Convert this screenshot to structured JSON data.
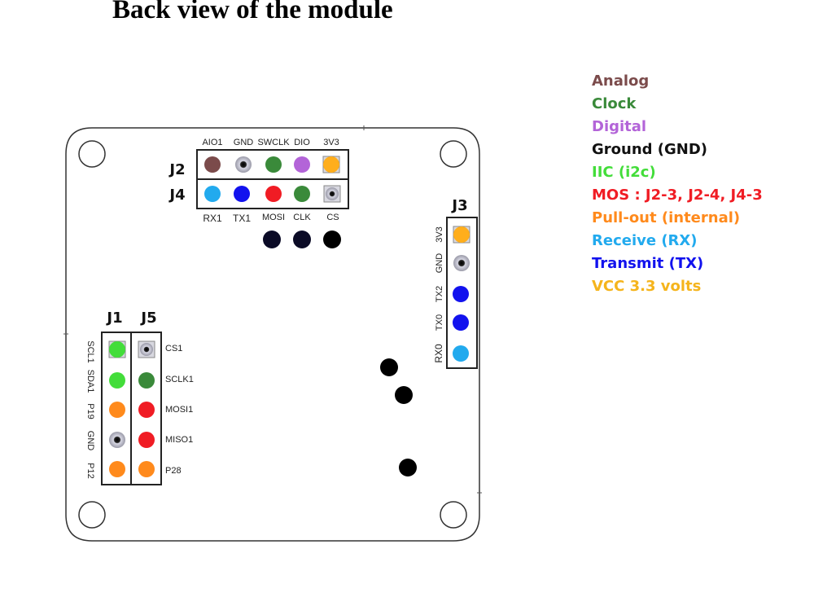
{
  "title": "Back view of the module",
  "colors": {
    "analog": "#7b4b4b",
    "clock": "#3a8a3a",
    "digital": "#b364d8",
    "ground": "#1a1a1a",
    "iic": "#43dd3a",
    "mos": "#f01c24",
    "pullout": "#ff8a1c",
    "rx": "#22aaee",
    "tx": "#1212ee",
    "vcc": "#ffae1c",
    "via": "#0b0b26"
  },
  "legend": [
    {
      "label": "Analog",
      "color": "#7b4b4b"
    },
    {
      "label": "Clock",
      "color": "#3a8a3a"
    },
    {
      "label": "Digital",
      "color": "#b364d8"
    },
    {
      "label": "Ground (GND)",
      "color": "#111111"
    },
    {
      "label": "IIC (i2c)",
      "color": "#43dd3a"
    },
    {
      "label": "MOS : J2-3, J2-4, J4-3",
      "color": "#f01c24"
    },
    {
      "label": "Pull-out (internal)",
      "color": "#ff8a1c"
    },
    {
      "label": "Receive (RX)",
      "color": "#22aaee"
    },
    {
      "label": "Transmit (TX)",
      "color": "#1212ee"
    },
    {
      "label": "VCC 3.3 volts",
      "color": "#f5b41c"
    }
  ],
  "headers": {
    "j2": {
      "name": "J2",
      "pins": [
        "AIO1",
        "GND",
        "SWCLK",
        "DIO",
        "3V3"
      ]
    },
    "j4": {
      "name": "J4",
      "pins": [
        "RX1",
        "TX1",
        "MOSI",
        "CLK",
        "CS"
      ]
    },
    "j3": {
      "name": "J3",
      "pins": [
        "3V3",
        "GND",
        "TX2",
        "TX0",
        "RX0"
      ]
    },
    "j1": {
      "name": "J1",
      "pins": [
        "SCL1",
        "SDA1",
        "P19",
        "GND",
        "P12"
      ]
    },
    "j5": {
      "name": "J5",
      "pins": [
        "CS1",
        "SCLK1",
        "MOSI1",
        "MISO1",
        "P28"
      ]
    }
  }
}
